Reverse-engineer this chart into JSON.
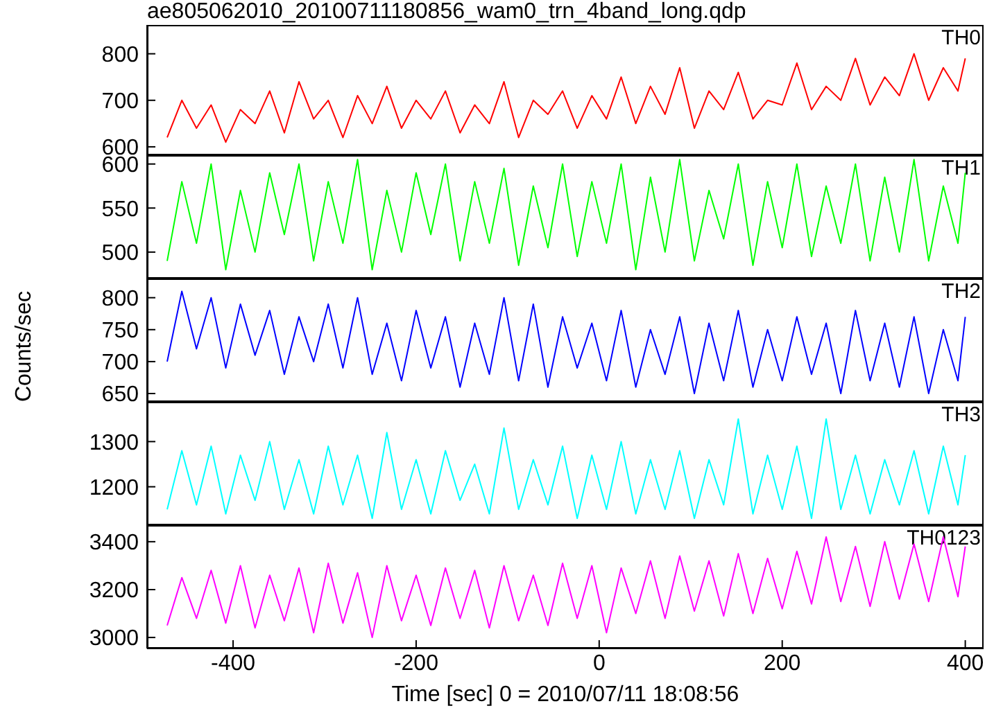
{
  "chart_data": [
    {
      "type": "line",
      "title": "ae805062010_20100711180856_wam0_trn_4band_long.qdp",
      "x": [
        -472,
        -456,
        -440,
        -424,
        -408,
        -392,
        -376,
        -360,
        -344,
        -328,
        -312,
        -296,
        -280,
        -264,
        -248,
        -232,
        -216,
        -200,
        -184,
        -168,
        -152,
        -136,
        -120,
        -104,
        -88,
        -72,
        -56,
        -40,
        -24,
        -8,
        8,
        24,
        40,
        56,
        72,
        88,
        104,
        120,
        136,
        152,
        168,
        184,
        200,
        216,
        232,
        248,
        264,
        280,
        296,
        312,
        328,
        344,
        360,
        376,
        392,
        400
      ],
      "series": [
        {
          "name": "TH0",
          "color": "#ff0000",
          "values": [
            620,
            700,
            640,
            690,
            610,
            680,
            650,
            720,
            630,
            740,
            660,
            700,
            620,
            710,
            650,
            730,
            640,
            700,
            660,
            720,
            630,
            690,
            650,
            740,
            620,
            700,
            670,
            720,
            640,
            710,
            660,
            750,
            650,
            730,
            670,
            770,
            640,
            720,
            680,
            760,
            660,
            700,
            690,
            780,
            680,
            730,
            700,
            790,
            690,
            750,
            710,
            800,
            700,
            770,
            720,
            790
          ]
        }
      ],
      "xlim": [
        -494,
        420
      ],
      "xticks": [
        -400,
        -200,
        0,
        200,
        400
      ],
      "ylim": [
        582,
        862
      ],
      "yticks": [
        600,
        700,
        800
      ],
      "tick_labels": "y"
    },
    {
      "type": "line",
      "x": [
        -472,
        -456,
        -440,
        -424,
        -408,
        -392,
        -376,
        -360,
        -344,
        -328,
        -312,
        -296,
        -280,
        -264,
        -248,
        -232,
        -216,
        -200,
        -184,
        -168,
        -152,
        -136,
        -120,
        -104,
        -88,
        -72,
        -56,
        -40,
        -24,
        -8,
        8,
        24,
        40,
        56,
        72,
        88,
        104,
        120,
        136,
        152,
        168,
        184,
        200,
        216,
        232,
        248,
        264,
        280,
        296,
        312,
        328,
        344,
        360,
        376,
        392,
        400
      ],
      "series": [
        {
          "name": "TH1",
          "color": "#00ff00",
          "values": [
            490,
            580,
            510,
            600,
            480,
            570,
            500,
            590,
            520,
            600,
            490,
            580,
            510,
            605,
            480,
            570,
            500,
            590,
            520,
            600,
            490,
            580,
            510,
            595,
            485,
            575,
            505,
            600,
            495,
            580,
            510,
            600,
            480,
            585,
            500,
            605,
            490,
            570,
            515,
            600,
            485,
            580,
            505,
            600,
            495,
            575,
            510,
            600,
            490,
            585,
            500,
            605,
            490,
            575,
            510,
            590
          ]
        }
      ],
      "xlim": [
        -494,
        420
      ],
      "xticks": [
        -400,
        -200,
        0,
        200,
        400
      ],
      "ylim": [
        470,
        610
      ],
      "yticks": [
        500,
        550,
        600
      ],
      "tick_labels": "y"
    },
    {
      "type": "line",
      "ylabel": "Counts/sec",
      "x": [
        -472,
        -456,
        -440,
        -424,
        -408,
        -392,
        -376,
        -360,
        -344,
        -328,
        -312,
        -296,
        -280,
        -264,
        -248,
        -232,
        -216,
        -200,
        -184,
        -168,
        -152,
        -136,
        -120,
        -104,
        -88,
        -72,
        -56,
        -40,
        -24,
        -8,
        8,
        24,
        40,
        56,
        72,
        88,
        104,
        120,
        136,
        152,
        168,
        184,
        200,
        216,
        232,
        248,
        264,
        280,
        296,
        312,
        328,
        344,
        360,
        376,
        392,
        400
      ],
      "series": [
        {
          "name": "TH2",
          "color": "#0000ff",
          "values": [
            700,
            810,
            720,
            800,
            690,
            790,
            710,
            780,
            680,
            770,
            700,
            790,
            690,
            800,
            680,
            760,
            670,
            780,
            690,
            770,
            660,
            760,
            680,
            800,
            670,
            790,
            660,
            770,
            690,
            760,
            670,
            780,
            660,
            750,
            680,
            770,
            650,
            760,
            670,
            780,
            660,
            750,
            670,
            770,
            680,
            760,
            650,
            780,
            670,
            760,
            660,
            770,
            650,
            750,
            670,
            770
          ]
        }
      ],
      "xlim": [
        -494,
        420
      ],
      "xticks": [
        -400,
        -200,
        0,
        200,
        400
      ],
      "ylim": [
        637,
        830
      ],
      "yticks": [
        650,
        700,
        750,
        800
      ],
      "tick_labels": "y"
    },
    {
      "type": "line",
      "x": [
        -472,
        -456,
        -440,
        -424,
        -408,
        -392,
        -376,
        -360,
        -344,
        -328,
        -312,
        -296,
        -280,
        -264,
        -248,
        -232,
        -216,
        -200,
        -184,
        -168,
        -152,
        -136,
        -120,
        -104,
        -88,
        -72,
        -56,
        -40,
        -24,
        -8,
        8,
        24,
        40,
        56,
        72,
        88,
        104,
        120,
        136,
        152,
        168,
        184,
        200,
        216,
        232,
        248,
        264,
        280,
        296,
        312,
        328,
        344,
        360,
        376,
        392,
        400
      ],
      "series": [
        {
          "name": "TH3",
          "color": "#00ffff",
          "values": [
            1150,
            1280,
            1160,
            1290,
            1140,
            1270,
            1170,
            1300,
            1150,
            1260,
            1140,
            1290,
            1160,
            1270,
            1130,
            1320,
            1150,
            1260,
            1140,
            1280,
            1170,
            1250,
            1140,
            1330,
            1150,
            1260,
            1160,
            1290,
            1130,
            1270,
            1150,
            1300,
            1140,
            1260,
            1150,
            1280,
            1130,
            1260,
            1160,
            1350,
            1140,
            1270,
            1150,
            1290,
            1130,
            1350,
            1150,
            1270,
            1140,
            1260,
            1160,
            1280,
            1140,
            1290,
            1160,
            1270
          ]
        }
      ],
      "xlim": [
        -494,
        420
      ],
      "xticks": [
        -400,
        -200,
        0,
        200,
        400
      ],
      "ylim": [
        1115,
        1388
      ],
      "yticks": [
        1200,
        1300
      ],
      "tick_labels": "y"
    },
    {
      "type": "line",
      "xlabel": "Time [sec] 0 = 2010/07/11 18:08:56",
      "x": [
        -472,
        -456,
        -440,
        -424,
        -408,
        -392,
        -376,
        -360,
        -344,
        -328,
        -312,
        -296,
        -280,
        -264,
        -248,
        -232,
        -216,
        -200,
        -184,
        -168,
        -152,
        -136,
        -120,
        -104,
        -88,
        -72,
        -56,
        -40,
        -24,
        -8,
        8,
        24,
        40,
        56,
        72,
        88,
        104,
        120,
        136,
        152,
        168,
        184,
        200,
        216,
        232,
        248,
        264,
        280,
        296,
        312,
        328,
        344,
        360,
        376,
        392,
        400
      ],
      "series": [
        {
          "name": "TH0123",
          "color": "#ff00ff",
          "values": [
            3050,
            3250,
            3080,
            3280,
            3060,
            3300,
            3040,
            3260,
            3070,
            3290,
            3020,
            3310,
            3060,
            3270,
            3000,
            3300,
            3070,
            3260,
            3050,
            3290,
            3080,
            3280,
            3040,
            3300,
            3070,
            3260,
            3050,
            3310,
            3080,
            3300,
            3020,
            3290,
            3100,
            3320,
            3080,
            3340,
            3110,
            3320,
            3090,
            3350,
            3100,
            3330,
            3120,
            3360,
            3140,
            3420,
            3150,
            3380,
            3130,
            3400,
            3160,
            3390,
            3150,
            3420,
            3170,
            3380
          ]
        }
      ],
      "xlim": [
        -494,
        420
      ],
      "xticks": [
        -400,
        -200,
        0,
        200,
        400
      ],
      "ylim": [
        2954,
        3469
      ],
      "yticks": [
        3000,
        3200,
        3400
      ]
    }
  ]
}
